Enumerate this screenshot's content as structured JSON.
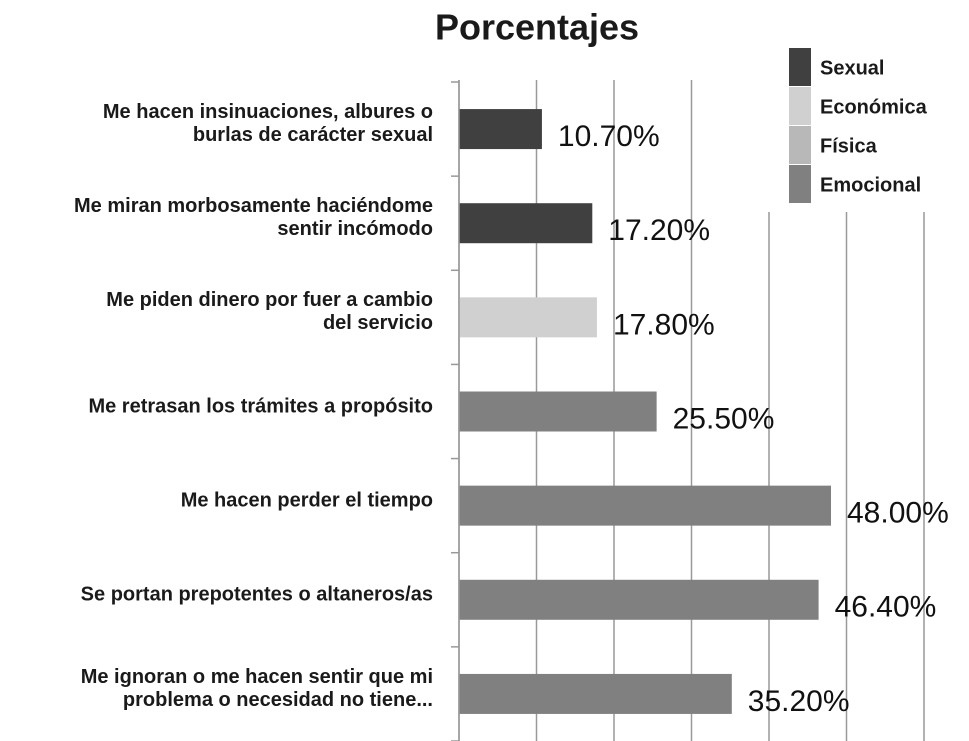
{
  "chart_data": {
    "type": "hbar",
    "title": "Porcentajes",
    "categories": [
      "Me hacen insinuaciones, albures o\nburlas de carácter sexual",
      "Me miran morbosamente haciéndome\nsentir incómodo",
      "Me piden dinero por fuer a cambio\ndel servicio",
      "Me retrasan los trámites a propósito",
      "Me hacen perder el tiempo",
      "Se portan prepotentes o altaneros/as",
      "Me ignoran o me hacen sentir que mi\nproblema o necesidad no tiene..."
    ],
    "series": [
      {
        "name": "Sexual",
        "color": "#404040",
        "values": [
          10.7,
          17.2,
          null,
          null,
          null,
          null,
          null
        ],
        "value_labels": [
          "10.70%",
          "17.20%",
          null,
          null,
          null,
          null,
          null
        ]
      },
      {
        "name": "Económica",
        "color": "#d0d0d0",
        "values": [
          null,
          null,
          17.8,
          null,
          null,
          null,
          null
        ],
        "value_labels": [
          null,
          null,
          "17.80%",
          null,
          null,
          null,
          null
        ]
      },
      {
        "name": "Física",
        "color": "#b8b8b8",
        "values": [
          null,
          null,
          null,
          null,
          null,
          null,
          null
        ],
        "value_labels": [
          null,
          null,
          null,
          null,
          null,
          null,
          null
        ]
      },
      {
        "name": "Emocional",
        "color": "#808080",
        "values": [
          null,
          null,
          null,
          25.5,
          48.0,
          46.4,
          35.2
        ],
        "value_labels": [
          null,
          null,
          null,
          "25.50%",
          "48.00%",
          "46.40%",
          "35.20%"
        ]
      }
    ],
    "xlim": [
      0,
      60
    ],
    "xticks": [
      0,
      10,
      20,
      30,
      40,
      50,
      60
    ],
    "grid": true
  }
}
